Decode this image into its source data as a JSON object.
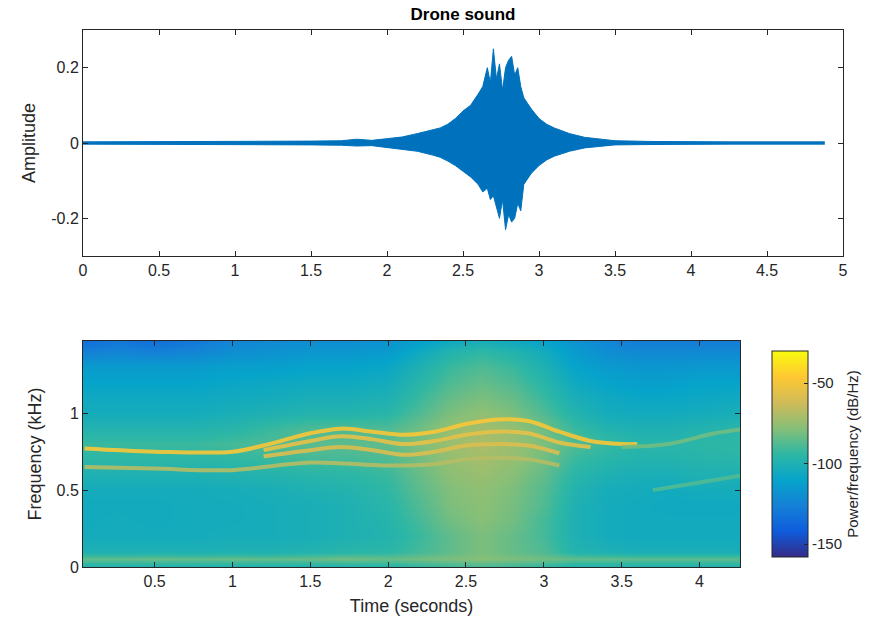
{
  "chart_data": [
    {
      "type": "waveform",
      "title": "Drone sound",
      "y_label": "Amplitude",
      "color": "#0072bd",
      "grid": false,
      "xlim": [
        0,
        5
      ],
      "xticks": [
        0,
        0.5,
        1,
        1.5,
        2,
        2.5,
        3,
        3.5,
        4,
        4.5,
        5
      ],
      "ylim": [
        -0.3,
        0.3
      ],
      "yticks": [
        -0.2,
        0,
        0.2
      ],
      "x": [
        0,
        0.25,
        0.5,
        0.75,
        1.0,
        1.25,
        1.5,
        1.7,
        1.8,
        1.9,
        2.0,
        2.1,
        2.2,
        2.3,
        2.35,
        2.4,
        2.45,
        2.5,
        2.55,
        2.6,
        2.63,
        2.66,
        2.68,
        2.7,
        2.72,
        2.74,
        2.76,
        2.78,
        2.8,
        2.82,
        2.84,
        2.86,
        2.88,
        2.9,
        2.95,
        3.0,
        3.05,
        3.1,
        3.2,
        3.3,
        3.4,
        3.5,
        3.75,
        4.0,
        4.25,
        4.5,
        4.7,
        4.88
      ],
      "series": [
        {
          "values": [
            0.003,
            0.003,
            0.003,
            0.003,
            0.004,
            0.004,
            0.005,
            0.006,
            0.01,
            0.007,
            0.012,
            0.016,
            0.025,
            0.035,
            0.04,
            0.05,
            0.065,
            0.085,
            0.1,
            0.13,
            0.15,
            0.2,
            0.16,
            0.25,
            0.17,
            0.21,
            0.14,
            0.2,
            0.22,
            0.23,
            0.18,
            0.2,
            0.15,
            0.12,
            0.09,
            0.065,
            0.05,
            0.04,
            0.025,
            0.015,
            0.01,
            0.006,
            0.004,
            0.003,
            0.003,
            0.003,
            0.003,
            0.003
          ]
        },
        {
          "values": [
            -0.003,
            -0.003,
            -0.003,
            -0.003,
            -0.004,
            -0.004,
            -0.005,
            -0.006,
            -0.008,
            -0.007,
            -0.012,
            -0.016,
            -0.022,
            -0.032,
            -0.038,
            -0.048,
            -0.06,
            -0.075,
            -0.09,
            -0.11,
            -0.13,
            -0.12,
            -0.15,
            -0.14,
            -0.17,
            -0.2,
            -0.15,
            -0.23,
            -0.19,
            -0.21,
            -0.2,
            -0.16,
            -0.18,
            -0.11,
            -0.08,
            -0.06,
            -0.045,
            -0.035,
            -0.022,
            -0.013,
            -0.009,
            -0.005,
            -0.004,
            -0.003,
            -0.003,
            -0.003,
            -0.003,
            -0.003
          ]
        }
      ]
    },
    {
      "type": "spectrogram",
      "x_label": "Time (seconds)",
      "y_label": "Frequency (kHz)",
      "grid": false,
      "xlim": [
        0.04,
        4.26
      ],
      "xticks": [
        0.5,
        1,
        1.5,
        2,
        2.5,
        3,
        3.5,
        4
      ],
      "ylim": [
        0,
        1.47
      ],
      "yticks": [
        0,
        0.5,
        1
      ],
      "x": [
        0.05,
        0.25,
        0.5,
        0.75,
        1.0,
        1.25,
        1.5,
        1.75,
        2.0,
        2.2,
        2.4,
        2.6,
        2.8,
        3.0,
        3.2,
        3.4,
        3.6,
        3.8,
        4.0,
        4.25
      ],
      "y": [
        0,
        0.05,
        0.1,
        0.2,
        0.3,
        0.4,
        0.5,
        0.6,
        0.7,
        0.8,
        0.9,
        1.0,
        1.1,
        1.2,
        1.3,
        1.4,
        1.47
      ],
      "cells": [
        [
          -100,
          -100,
          -100,
          -100,
          -100,
          -100,
          -100,
          -100,
          -98,
          -95,
          -92,
          -90,
          -92,
          -95,
          -100,
          -100,
          -100,
          -100,
          -100,
          -100
        ],
        [
          -85,
          -85,
          -84,
          -85,
          -84,
          -85,
          -84,
          -82,
          -84,
          -82,
          -80,
          -78,
          -80,
          -82,
          -85,
          -85,
          -86,
          -86,
          -86,
          -86
        ],
        [
          -100,
          -100,
          -100,
          -100,
          -100,
          -100,
          -98,
          -96,
          -95,
          -90,
          -85,
          -80,
          -84,
          -88,
          -98,
          -100,
          -102,
          -102,
          -102,
          -102
        ],
        [
          -104,
          -104,
          -104,
          -104,
          -103,
          -103,
          -102,
          -100,
          -98,
          -92,
          -85,
          -80,
          -84,
          -90,
          -100,
          -104,
          -105,
          -105,
          -105,
          -105
        ],
        [
          -105,
          -104,
          -105,
          -104,
          -104,
          -103,
          -102,
          -100,
          -97,
          -90,
          -82,
          -78,
          -82,
          -90,
          -100,
          -104,
          -105,
          -105,
          -105,
          -105
        ],
        [
          -105,
          -105,
          -105,
          -104,
          -104,
          -103,
          -102,
          -100,
          -96,
          -88,
          -80,
          -77,
          -81,
          -88,
          -100,
          -104,
          -105,
          -106,
          -106,
          -106
        ],
        [
          -104,
          -104,
          -104,
          -104,
          -103,
          -102,
          -100,
          -98,
          -94,
          -86,
          -79,
          -76,
          -80,
          -87,
          -98,
          -103,
          -104,
          -105,
          -104,
          -104
        ],
        [
          -100,
          -100,
          -100,
          -100,
          -99,
          -98,
          -96,
          -95,
          -92,
          -84,
          -77,
          -74,
          -78,
          -85,
          -96,
          -100,
          -102,
          -102,
          -100,
          -100
        ],
        [
          -95,
          -95,
          -95,
          -95,
          -94,
          -92,
          -90,
          -90,
          -88,
          -82,
          -75,
          -72,
          -75,
          -82,
          -92,
          -96,
          -98,
          -98,
          -97,
          -96
        ],
        [
          -92,
          -92,
          -92,
          -92,
          -90,
          -88,
          -86,
          -86,
          -85,
          -80,
          -74,
          -70,
          -74,
          -80,
          -88,
          -92,
          -96,
          -96,
          -95,
          -94
        ],
        [
          -98,
          -98,
          -98,
          -98,
          -96,
          -92,
          -88,
          -88,
          -88,
          -82,
          -75,
          -72,
          -75,
          -82,
          -92,
          -98,
          -100,
          -100,
          -98,
          -96
        ],
        [
          -104,
          -104,
          -104,
          -104,
          -102,
          -100,
          -98,
          -98,
          -96,
          -88,
          -80,
          -76,
          -80,
          -88,
          -98,
          -104,
          -105,
          -105,
          -104,
          -102
        ],
        [
          -106,
          -106,
          -106,
          -106,
          -105,
          -104,
          -102,
          -102,
          -100,
          -92,
          -84,
          -80,
          -84,
          -92,
          -102,
          -106,
          -108,
          -108,
          -107,
          -106
        ],
        [
          -110,
          -110,
          -110,
          -110,
          -108,
          -107,
          -106,
          -106,
          -104,
          -96,
          -88,
          -84,
          -88,
          -96,
          -106,
          -110,
          -112,
          -112,
          -110,
          -110
        ],
        [
          -114,
          -114,
          -114,
          -114,
          -112,
          -112,
          -110,
          -110,
          -108,
          -100,
          -92,
          -88,
          -92,
          -100,
          -110,
          -114,
          -116,
          -116,
          -115,
          -115
        ],
        [
          -126,
          -124,
          -126,
          -124,
          -120,
          -118,
          -116,
          -116,
          -114,
          -106,
          -98,
          -94,
          -98,
          -104,
          -114,
          -120,
          -122,
          -122,
          -122,
          -122
        ],
        [
          -134,
          -130,
          -134,
          -130,
          -124,
          -122,
          -120,
          -120,
          -118,
          -112,
          -106,
          -102,
          -106,
          -110,
          -118,
          -124,
          -128,
          -128,
          -128,
          -128
        ]
      ],
      "colorbar": {
        "title": "Power/frequency (dB/Hz)",
        "range": [
          -158,
          -30
        ],
        "ticks": [
          -50,
          -100,
          -150
        ]
      },
      "harmonics": [
        {
          "level": -48,
          "x": [
            0.05,
            0.5,
            1.0,
            1.2,
            1.5,
            1.7,
            1.9,
            2.1,
            2.3,
            2.5,
            2.7,
            2.9,
            3.1,
            3.3,
            3.5,
            3.6
          ],
          "values": [
            0.77,
            0.75,
            0.75,
            0.79,
            0.87,
            0.9,
            0.88,
            0.86,
            0.88,
            0.93,
            0.96,
            0.95,
            0.88,
            0.82,
            0.8,
            0.8
          ]
        },
        {
          "level": -55,
          "x": [
            1.2,
            1.5,
            1.7,
            1.9,
            2.1,
            2.3,
            2.5,
            2.7,
            2.9,
            3.1,
            3.3
          ],
          "values": [
            0.76,
            0.82,
            0.85,
            0.83,
            0.8,
            0.82,
            0.86,
            0.88,
            0.87,
            0.81,
            0.78
          ]
        },
        {
          "level": -58,
          "x": [
            1.2,
            1.5,
            1.7,
            1.9,
            2.1,
            2.3,
            2.5,
            2.7,
            2.9,
            3.1
          ],
          "values": [
            0.72,
            0.76,
            0.78,
            0.76,
            0.73,
            0.75,
            0.79,
            0.8,
            0.79,
            0.74
          ]
        },
        {
          "level": -68,
          "x": [
            0.05,
            0.5,
            1.0,
            1.5,
            2.0,
            2.3,
            2.5,
            2.7,
            2.9,
            3.1
          ],
          "values": [
            0.65,
            0.64,
            0.63,
            0.68,
            0.66,
            0.67,
            0.7,
            0.71,
            0.7,
            0.66
          ]
        },
        {
          "level": -82,
          "x": [
            3.5,
            3.8,
            4.1,
            4.3
          ],
          "values": [
            0.78,
            0.8,
            0.87,
            0.9
          ]
        },
        {
          "level": -88,
          "x": [
            3.7,
            4.0,
            4.3
          ],
          "values": [
            0.5,
            0.55,
            0.6
          ]
        }
      ]
    }
  ]
}
